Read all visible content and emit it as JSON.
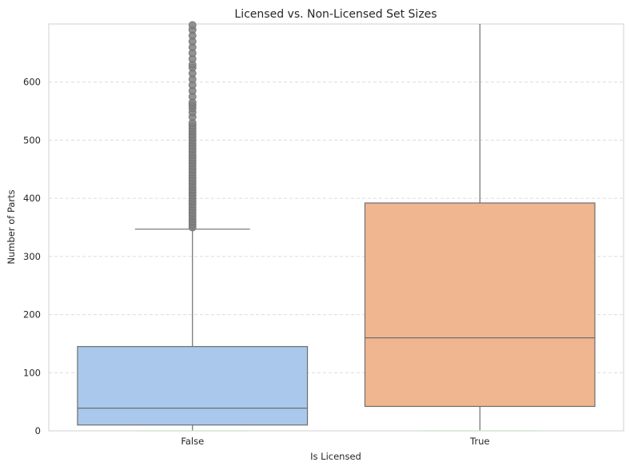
{
  "chart_data": {
    "type": "box",
    "title": "Licensed vs. Non-Licensed Set Sizes",
    "xlabel": "Is Licensed",
    "ylabel": "Number of Parts",
    "ylim": [
      0,
      700
    ],
    "yticks": [
      0,
      100,
      200,
      300,
      400,
      500,
      600
    ],
    "grid": "y-dashed",
    "categories": [
      "False",
      "True"
    ],
    "boxes": [
      {
        "category": "False",
        "color": "#a9c8eb",
        "min": 0,
        "q1": 10,
        "median": 39,
        "q3": 145,
        "whisker_low": 0,
        "whisker_high": 347,
        "outliers_from": 348,
        "outliers_to": 700,
        "outliers": [
          350,
          355,
          360,
          365,
          370,
          375,
          380,
          385,
          390,
          395,
          400,
          405,
          410,
          415,
          420,
          425,
          430,
          435,
          440,
          445,
          450,
          455,
          460,
          465,
          470,
          475,
          480,
          485,
          490,
          495,
          500,
          505,
          510,
          515,
          520,
          525,
          530,
          540,
          548,
          555,
          560,
          565,
          575,
          585,
          595,
          605,
          615,
          625,
          630,
          640,
          650,
          660,
          670,
          680,
          690,
          698
        ]
      },
      {
        "category": "True",
        "color": "#f0b690",
        "min": 0,
        "q1": 42,
        "median": 160,
        "q3": 392,
        "whisker_low": 0,
        "whisker_high": 700
      }
    ]
  }
}
